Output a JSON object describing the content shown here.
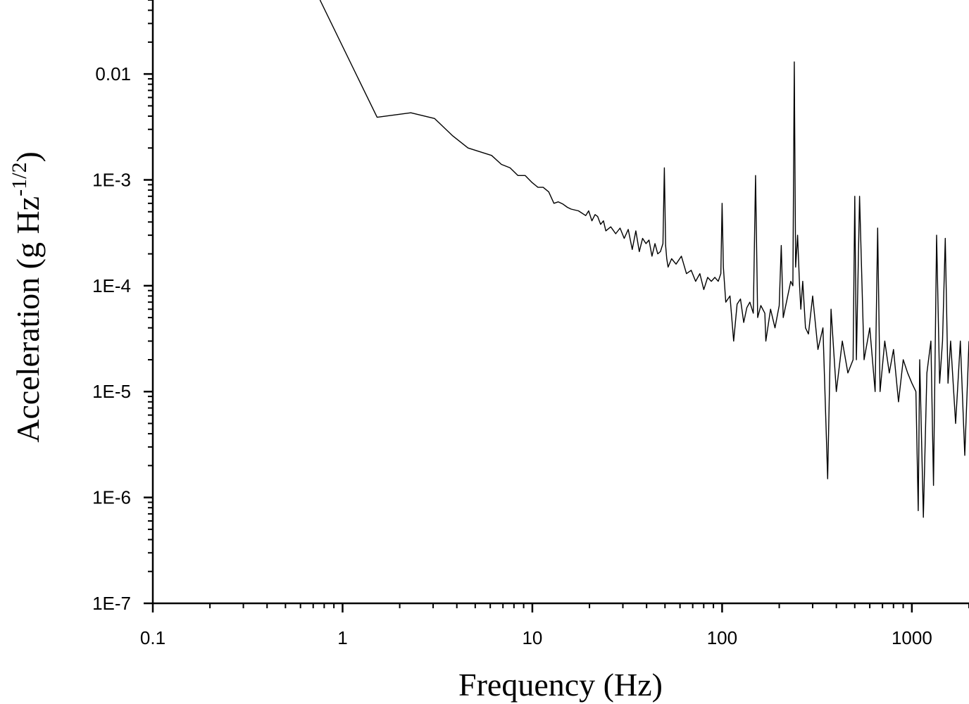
{
  "chart_data": {
    "type": "line",
    "title": "",
    "xlabel": "Frequency (Hz)",
    "ylabel": {
      "text": "Acceleration (g Hz",
      "superscript": "-1/2",
      "close": ")"
    },
    "x_scale": "log",
    "y_scale": "log",
    "xlim": [
      0.1,
      2000
    ],
    "ylim": [
      1e-07,
      0.05
    ],
    "x_ticks": [
      {
        "value": 0.1,
        "label": "0.1"
      },
      {
        "value": 1,
        "label": "1"
      },
      {
        "value": 10,
        "label": "10"
      },
      {
        "value": 100,
        "label": "100"
      },
      {
        "value": 1000,
        "label": "1000"
      }
    ],
    "y_ticks": [
      {
        "value": 0.01,
        "label": "0.01"
      },
      {
        "value": 0.001,
        "label": "1E-3"
      },
      {
        "value": 0.0001,
        "label": "1E-4"
      },
      {
        "value": 1e-05,
        "label": "1E-5"
      },
      {
        "value": 1e-06,
        "label": "1E-6"
      },
      {
        "value": 1e-07,
        "label": "1E-7"
      }
    ],
    "grid": false,
    "line_color": "#000000",
    "series": [
      {
        "name": "",
        "x": [
          0.76,
          1.52,
          2.29,
          3.05,
          3.81,
          4.58,
          6.1,
          6.87,
          7.63,
          8.39,
          9.16,
          9.92,
          10.7,
          11.4,
          12.2,
          13.0,
          13.7,
          14.5,
          15.3,
          16.0,
          17.5,
          19.1,
          19.8,
          20.6,
          21.4,
          22.1,
          22.9,
          23.7,
          24.4,
          25.9,
          27.5,
          29.0,
          30.5,
          32.0,
          33.6,
          35.1,
          36.6,
          38.1,
          39.7,
          41.2,
          42.7,
          44.3,
          45.8,
          47.3,
          48.8,
          49.6,
          50.4,
          51.1,
          51.9,
          54.2,
          57.2,
          61.0,
          64.9,
          68.7,
          72.5,
          76.3,
          80.1,
          83.9,
          87.7,
          91.6,
          95.4,
          98.5,
          100.0,
          101.5,
          104.5,
          110.0,
          115.0,
          120.0,
          125.0,
          130.0,
          135.0,
          140.0,
          146.0,
          150.0,
          154.0,
          160.0,
          168.0,
          170.0,
          180.0,
          190.0,
          200.0,
          205.0,
          210.0,
          220.0,
          230.0,
          236.0,
          240.0,
          244.0,
          250.0,
          256.0,
          260.0,
          266.0,
          275.0,
          285.0,
          300.0,
          320.0,
          340.0,
          360.0,
          375.0,
          400.0,
          430.0,
          460.0,
          490.0,
          500.0,
          510.0,
          530.0,
          560.0,
          600.0,
          640.0,
          660.0,
          680.0,
          720.0,
          760.0,
          800.0,
          850.0,
          900.0,
          950.0,
          1000.0,
          1050.0,
          1080.0,
          1100.0,
          1150.0,
          1200.0,
          1260.0,
          1300.0,
          1350.0,
          1400.0,
          1450.0,
          1500.0,
          1550.0,
          1600.0,
          1700.0,
          1800.0,
          1900.0,
          2000.0
        ],
        "y": [
          0.05,
          0.0039,
          0.0043,
          0.0038,
          0.0026,
          0.002,
          0.0017,
          0.0014,
          0.0013,
          0.0011,
          0.0011,
          0.00095,
          0.00085,
          0.00085,
          0.00077,
          0.0006,
          0.00062,
          0.00059,
          0.00055,
          0.00053,
          0.00051,
          0.00046,
          0.00051,
          0.00041,
          0.00047,
          0.00045,
          0.00038,
          0.00041,
          0.00033,
          0.00036,
          0.00031,
          0.00035,
          0.00028,
          0.00034,
          0.00022,
          0.00033,
          0.00021,
          0.00028,
          0.00025,
          0.00027,
          0.00019,
          0.00025,
          0.0002,
          0.00021,
          0.00025,
          0.0013,
          0.00024,
          0.00018,
          0.00015,
          0.00018,
          0.00016,
          0.00019,
          0.00013,
          0.00014,
          0.00011,
          0.00013,
          9.2e-05,
          0.00012,
          0.00011,
          0.00012,
          0.00011,
          0.00013,
          0.0006,
          0.00015,
          7e-05,
          8e-05,
          3e-05,
          6.7e-05,
          7.5e-05,
          4.5e-05,
          6.2e-05,
          7e-05,
          5.5e-05,
          0.0011,
          5e-05,
          6.5e-05,
          5.5e-05,
          3e-05,
          6e-05,
          4e-05,
          6.5e-05,
          0.00024,
          5e-05,
          7.5e-05,
          0.00011,
          0.0001,
          0.013,
          0.00015,
          0.0003,
          0.0001,
          6e-05,
          0.00011,
          4e-05,
          3.5e-05,
          8e-05,
          2.5e-05,
          4e-05,
          1.5e-06,
          6e-05,
          1e-05,
          3e-05,
          1.5e-05,
          2e-05,
          0.0007,
          2e-05,
          0.0007,
          2e-05,
          4e-05,
          1e-05,
          0.00035,
          1e-05,
          3e-05,
          1.5e-05,
          2.5e-05,
          8e-06,
          2e-05,
          1.5e-05,
          1.2e-05,
          1e-05,
          7.5e-07,
          2e-05,
          6.5e-07,
          1.5e-05,
          3e-05,
          1.3e-06,
          0.0003,
          1.2e-05,
          3e-05,
          0.00028,
          1.2e-05,
          3e-05,
          5e-06,
          3e-05,
          2.5e-06,
          3e-05
        ]
      }
    ]
  }
}
